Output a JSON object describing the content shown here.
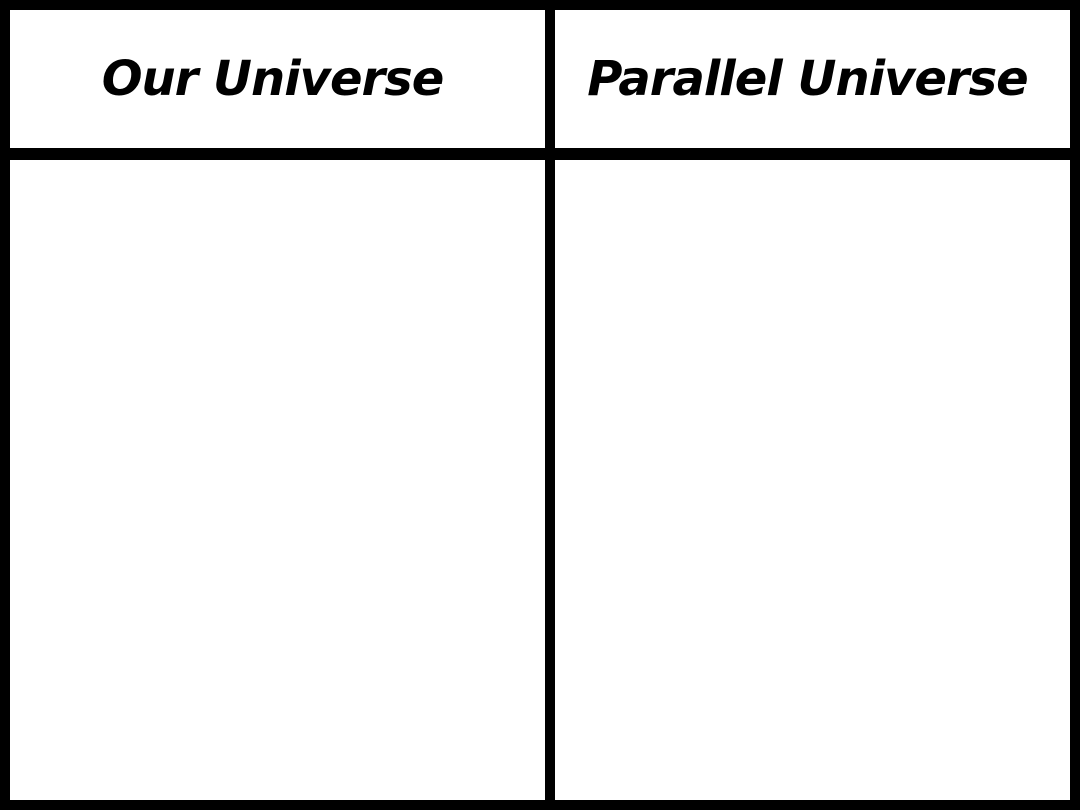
{
  "table": {
    "columns": [
      {
        "header": "Our Universe"
      },
      {
        "header": "Parallel Universe"
      }
    ]
  },
  "colors": {
    "border": "#000000",
    "background": "#ffffff",
    "text": "#000000"
  }
}
